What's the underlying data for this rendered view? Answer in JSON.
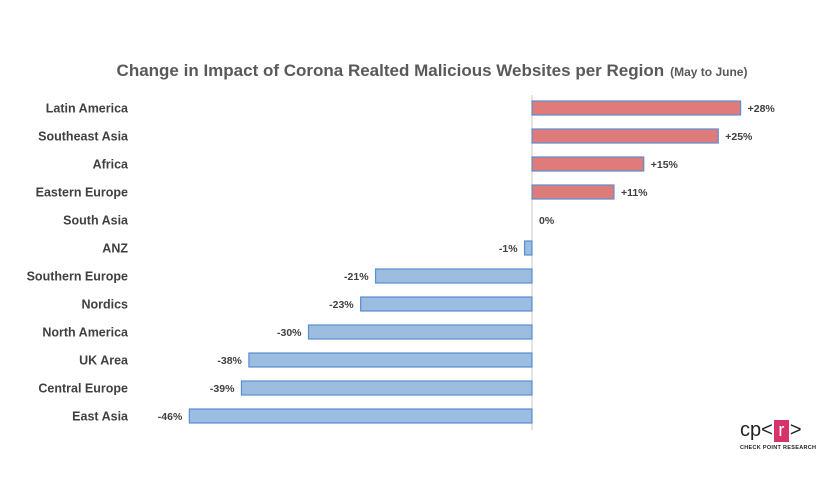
{
  "chart_data": {
    "type": "bar",
    "orientation": "horizontal",
    "title": "Change in Impact of Corona Realted Malicious Websites per Region",
    "subtitle": "(May to June)",
    "categories": [
      "Latin America",
      "Southeast Asia",
      "Africa",
      "Eastern Europe",
      "South Asia",
      "ANZ",
      "Southern Europe",
      "Nordics",
      "North America",
      "UK Area",
      "Central Europe",
      "East Asia"
    ],
    "values": [
      28,
      25,
      15,
      11,
      0,
      -1,
      -21,
      -23,
      -30,
      -38,
      -39,
      -46
    ],
    "labels": [
      "+28%",
      "+25%",
      "+15%",
      "+11%",
      "0%",
      "-1%",
      "-21%",
      "-23%",
      "-30%",
      "-38%",
      "-39%",
      "-46%"
    ],
    "xlim": [
      -46,
      28
    ],
    "unit": "%",
    "grid": false,
    "legend": "none",
    "colors": {
      "positive": "#e07b7b",
      "negative": "#9bbde0",
      "outline": "#5b8ed1"
    }
  },
  "logo": {
    "left": "cp",
    "open": "<",
    "box": "r",
    "close": ">",
    "caption": "CHECK POINT RESEARCH"
  }
}
